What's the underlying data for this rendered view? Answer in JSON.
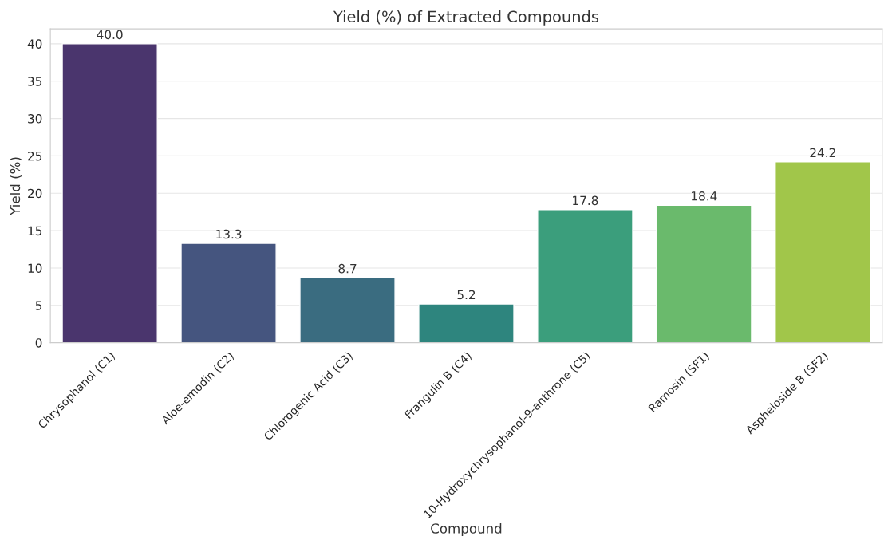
{
  "chart_data": {
    "type": "bar",
    "title": "Yield (%) of Extracted Compounds",
    "xlabel": "Compound",
    "ylabel": "Yield (%)",
    "categories": [
      "Chrysophanol (C1)",
      "Aloe-emodin (C2)",
      "Chlorogenic Acid (C3)",
      "Frangulin B (C4)",
      "10-Hydroxychrysophanol-9-anthrone (C5)",
      "Ramosin (SF1)",
      "Aspheloside B (SF2)"
    ],
    "values": [
      40.0,
      13.3,
      8.7,
      5.2,
      17.8,
      18.4,
      24.2
    ],
    "colors": [
      "#4a356d",
      "#45557f",
      "#3a6c80",
      "#2e857e",
      "#3b9e7c",
      "#6aba6c",
      "#a1c64a"
    ],
    "ylim": [
      0,
      42
    ],
    "yticks": [
      0,
      5,
      10,
      15,
      20,
      25,
      30,
      35,
      40
    ],
    "grid": "y",
    "value_labels": [
      "40.0",
      "13.3",
      "8.7",
      "5.2",
      "17.8",
      "18.4",
      "24.2"
    ]
  }
}
